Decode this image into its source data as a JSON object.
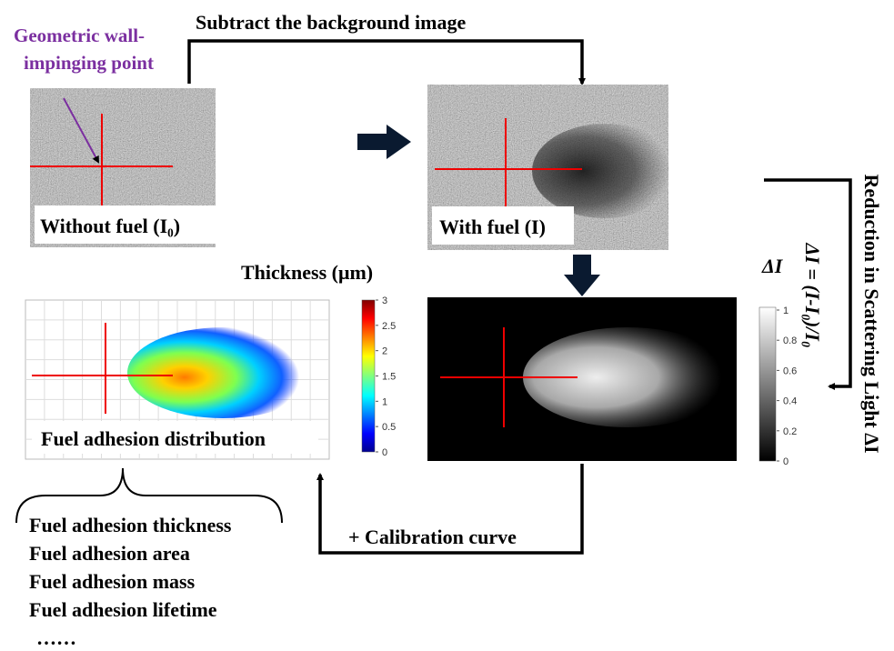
{
  "top_arrow_label": "Subtract the background image",
  "annotation": {
    "lines": [
      "Geometric wall-",
      "impinging point"
    ]
  },
  "panels": {
    "without_fuel": {
      "label": "Without fuel (I₀)"
    },
    "with_fuel": {
      "label": "With fuel (I)"
    },
    "delta": {
      "title": "ΔI",
      "colorbar_ticks": [
        "1",
        "0.8",
        "0.6",
        "0.4",
        "0.2",
        "0"
      ]
    },
    "distribution": {
      "title": "Thickness (μm)",
      "label": "Fuel adhesion distribution",
      "colorbar_ticks": [
        "3",
        "2.5",
        "2",
        "1.5",
        "1",
        "0.5",
        "0"
      ]
    }
  },
  "side_label": "Reduction in Scattering Light ΔI",
  "equation": "ΔI = (I-I₀)/I₀",
  "bottom_arrow_label": "+ Calibration curve",
  "outputs": [
    "Fuel adhesion thickness",
    "Fuel adhesion area",
    "Fuel adhesion mass",
    "Fuel adhesion lifetime",
    "……"
  ]
}
